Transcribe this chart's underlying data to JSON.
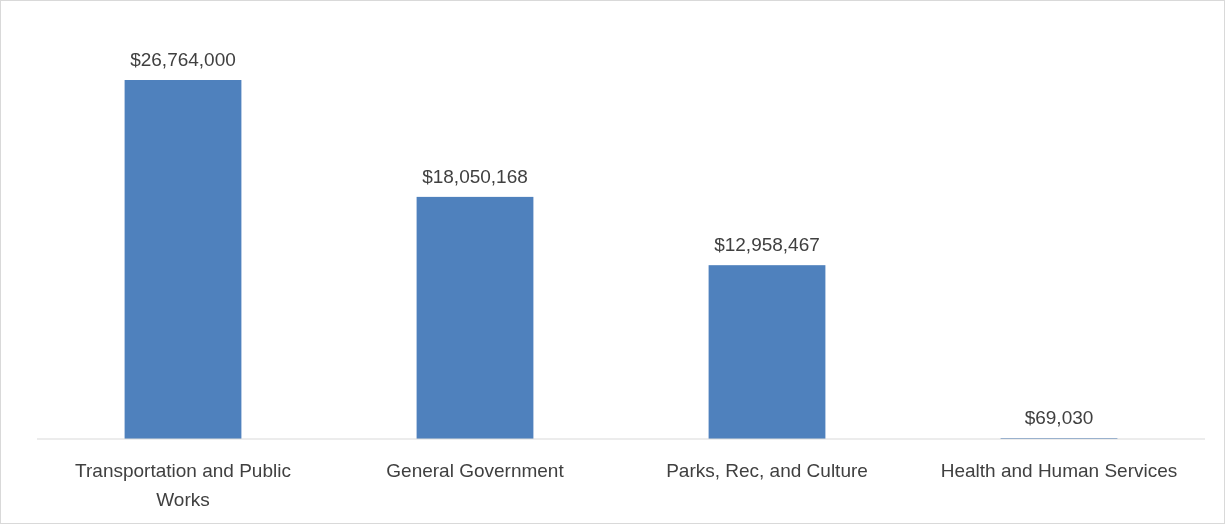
{
  "chart_data": {
    "type": "bar",
    "categories": [
      "Transportation and Public Works",
      "General Government",
      "Parks, Rec, and Culture",
      "Health and Human Services"
    ],
    "values": [
      26764000,
      18050168,
      12958467,
      69030
    ],
    "color": "#4f81bd",
    "value_labels": [
      "$26,764,000",
      "$18,050,168",
      "$12,958,467",
      "$69,030"
    ]
  }
}
